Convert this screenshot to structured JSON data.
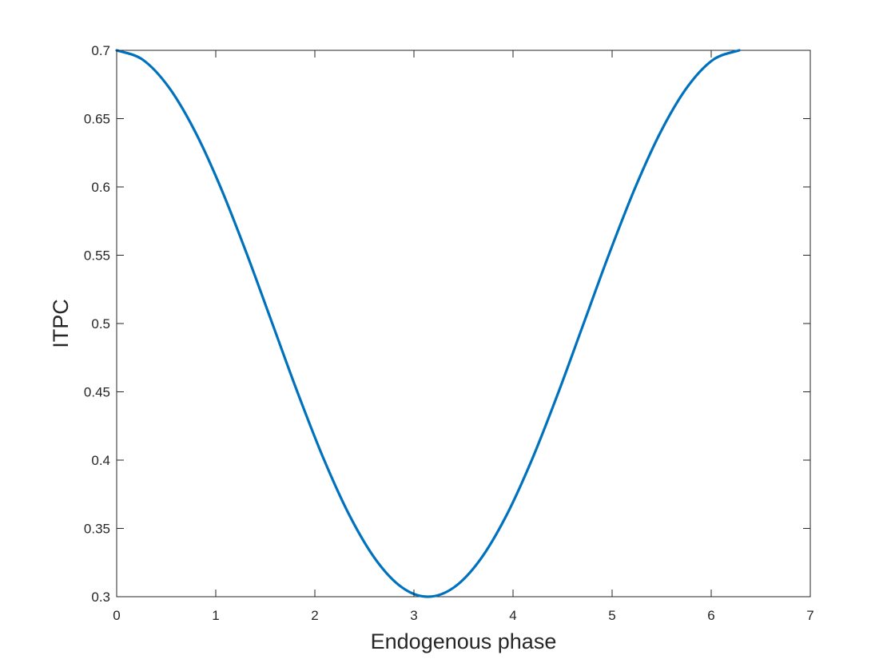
{
  "chart_data": {
    "type": "line",
    "title": "",
    "xlabel": "Endogenous phase",
    "ylabel": "ITPC",
    "xlim": [
      0,
      7
    ],
    "ylim": [
      0.3,
      0.7
    ],
    "xticks": [
      "0",
      "1",
      "2",
      "3",
      "4",
      "5",
      "6",
      "7"
    ],
    "yticks": [
      "0.3",
      "0.35",
      "0.4",
      "0.45",
      "0.5",
      "0.55",
      "0.6",
      "0.65",
      "0.7"
    ],
    "grid": false,
    "box": true,
    "line_color": "#0072BD",
    "series": [
      {
        "x": [
          0,
          0.2618,
          0.5236,
          0.7854,
          1.0472,
          1.309,
          1.5708,
          1.8326,
          2.0944,
          2.3562,
          2.618,
          2.8798,
          3.1416,
          3.4034,
          3.6652,
          3.927,
          4.1888,
          4.4506,
          4.7124,
          4.9742,
          5.236,
          5.4978,
          5.7596,
          6.0214,
          6.2832
        ],
        "y": [
          0.7,
          0.6932,
          0.6732,
          0.6414,
          0.6,
          0.5518,
          0.5,
          0.4482,
          0.4,
          0.3586,
          0.3268,
          0.3068,
          0.3,
          0.3068,
          0.3268,
          0.3586,
          0.4,
          0.4482,
          0.5,
          0.5518,
          0.6,
          0.6414,
          0.6732,
          0.6932,
          0.7
        ]
      }
    ]
  }
}
